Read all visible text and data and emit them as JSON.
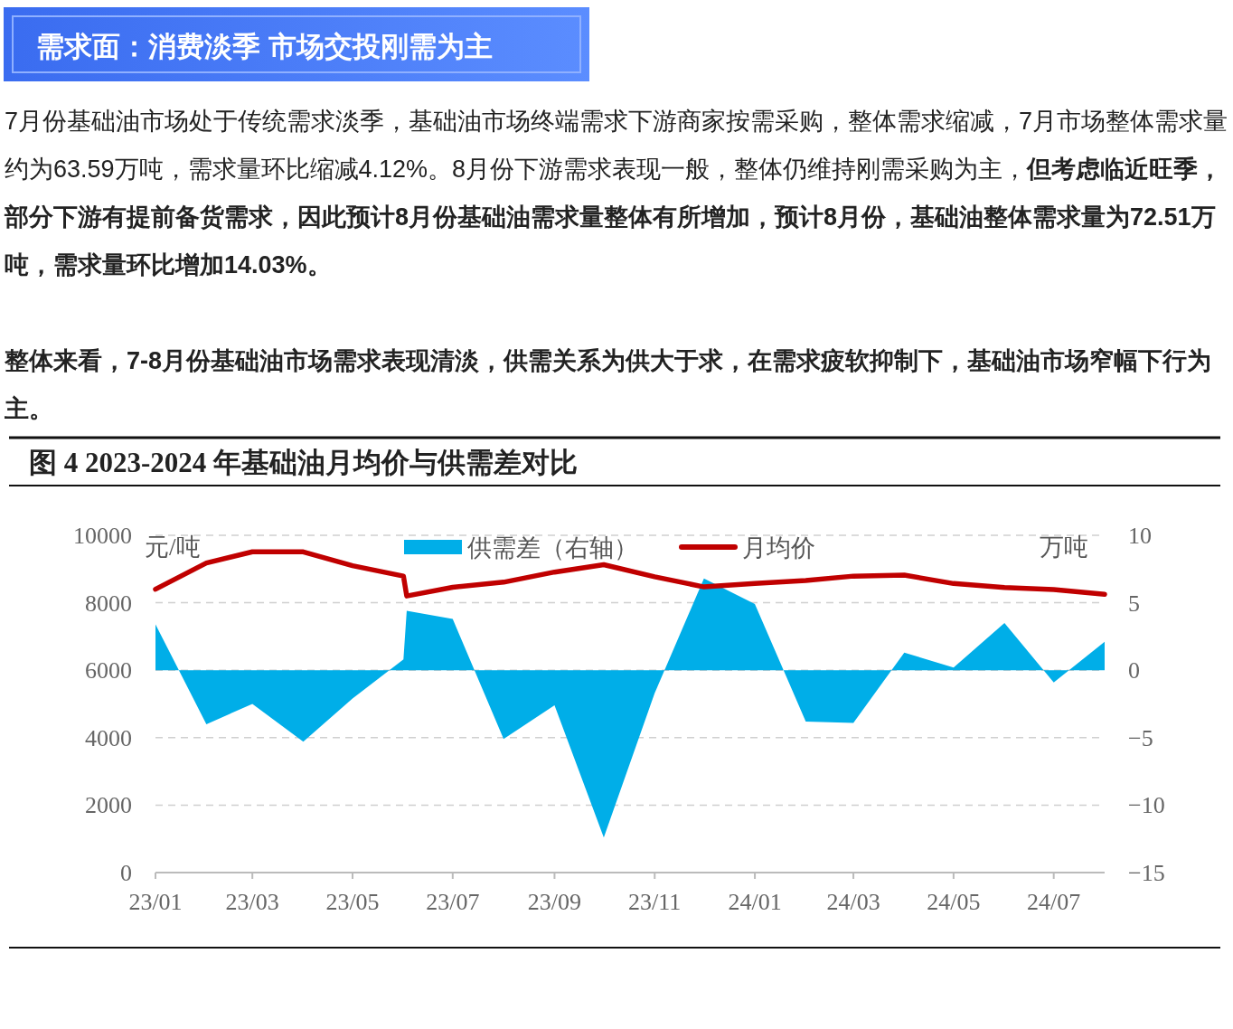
{
  "chart_data": {
    "type": "line",
    "title": "图 4 2023-2024 年基础油月均价与供需差对比",
    "annotations": [
      "需求面：消费淡季 市场交投刚需为主",
      "7月份基础油市场处于传统需求淡季，基础油市场终端需求下游商家按需采购，整体需求缩减，7月市场整体需求量约为63.59万吨，需求量环比缩减4.12%。8月份下游需求表现一般，整体仍维持刚需采购为主，",
      "但考虑临近旺季，部分下游有提前备货需求，因此预计8月份基础油需求量整体有所增加，预计8月份，基础油整体需求量为72.51万吨，需求量环比增加14.03%。",
      "整体来看，7-8月份基础油市场需求表现清淡，供需关系为供大于求，在需求疲软抑制下，基础油市场窄幅下行为主。"
    ],
    "x": [
      "2023-01",
      "2023-02",
      "2023-03",
      "2023-04",
      "2023-05",
      "2023-06-01",
      "2023-06-03",
      "2023-07",
      "2023-08",
      "2023-09",
      "2023-10",
      "2023-11",
      "2023-12",
      "2024-01",
      "2024-02",
      "2024-03",
      "2024-04",
      "2024-05",
      "2024-06",
      "2024-07",
      "2024-08"
    ],
    "series": [
      {
        "name": "供需差（右轴）",
        "type": "area",
        "axis": "y2",
        "color": "#00aee8",
        "values": [
          3.4,
          -4.0,
          -2.5,
          -5.3,
          -2.1,
          0.8,
          4.4,
          3.8,
          -5.1,
          -2.6,
          -12.4,
          -1.7,
          6.8,
          4.9,
          -3.8,
          -3.9,
          1.3,
          0.2,
          3.5,
          -0.9,
          2.1
        ]
      },
      {
        "name": "月均价",
        "color": "#c00000",
        "values": [
          8400,
          9180,
          9510,
          9510,
          9100,
          8790,
          8200,
          8460,
          8610,
          8910,
          9130,
          8770,
          8470,
          8570,
          8660,
          8790,
          8820,
          8570,
          8450,
          8390,
          8250
        ]
      }
    ],
    "xlim": [
      "2023-01",
      "2024-08"
    ],
    "xticks": [
      {
        "value": "2023-01",
        "label": "23/01"
      },
      {
        "value": "2023-03",
        "label": "23/03"
      },
      {
        "value": "2023-05",
        "label": "23/05"
      },
      {
        "value": "2023-07",
        "label": "23/07"
      },
      {
        "value": "2023-09",
        "label": "23/09"
      },
      {
        "value": "2023-11",
        "label": "23/11"
      },
      {
        "value": "2024-01",
        "label": "24/01"
      },
      {
        "value": "2024-03",
        "label": "24/03"
      },
      {
        "value": "2024-05",
        "label": "24/05"
      },
      {
        "value": "2024-07",
        "label": "24/07"
      }
    ],
    "ylim": [
      0,
      10000
    ],
    "yticks": [
      0,
      2000,
      4000,
      6000,
      8000,
      10000
    ],
    "y2lim": [
      -15,
      10
    ],
    "y2ticks": [
      -15,
      -10,
      -5,
      0,
      5,
      10
    ],
    "ylabel": "元/吨",
    "y2label": "万吨",
    "grid": "y",
    "legend": "top"
  }
}
